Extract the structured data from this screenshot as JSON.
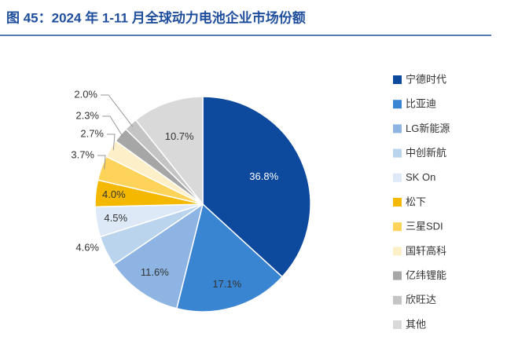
{
  "chart_data": {
    "type": "pie",
    "title": "图 45：2024 年 1-11 月全球动力电池企业市场份额",
    "categories": [
      "宁德时代",
      "比亚迪",
      "LG新能源",
      "中创新航",
      "SK On",
      "松下",
      "三星SDI",
      "国轩高科",
      "亿纬锂能",
      "欣旺达",
      "其他"
    ],
    "values": [
      36.8,
      17.1,
      11.6,
      4.6,
      4.5,
      4.0,
      3.7,
      2.7,
      2.3,
      2.0,
      10.7
    ],
    "value_labels": [
      "36.8%",
      "17.1%",
      "11.6%",
      "4.6%",
      "4.5%",
      "4.0%",
      "3.7%",
      "2.7%",
      "2.3%",
      "2.0%",
      "10.7%"
    ],
    "colors": [
      "#0d4a9e",
      "#3a85d1",
      "#8db4e2",
      "#bad4ee",
      "#dde9f6",
      "#f5b800",
      "#fdd35a",
      "#fdf0c8",
      "#a6a6a6",
      "#c4c4c4",
      "#d9d9d9"
    ],
    "legend": "right"
  }
}
